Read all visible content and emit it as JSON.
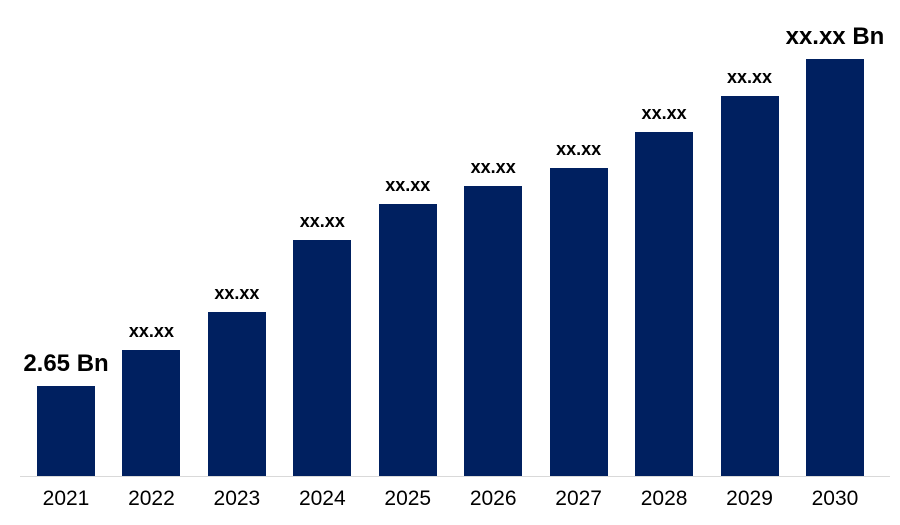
{
  "chart_data": {
    "type": "bar",
    "categories": [
      "2021",
      "2022",
      "2023",
      "2024",
      "2025",
      "2026",
      "2027",
      "2028",
      "2029",
      "2030"
    ],
    "values": [
      2.65,
      3.71,
      4.83,
      6.95,
      8.01,
      8.54,
      9.07,
      10.13,
      11.19,
      12.28
    ],
    "value_labels": [
      "2.65 Bn",
      "xx.xx",
      "xx.xx",
      "xx.xx",
      "xx.xx",
      "xx.xx",
      "xx.xx",
      "xx.xx",
      "xx.xx",
      "xx.xx Bn"
    ],
    "emphasized_labels": [
      true,
      false,
      false,
      false,
      false,
      false,
      false,
      false,
      false,
      true
    ],
    "unit": "Bn",
    "known_values": {
      "2021": "2.65 Bn"
    },
    "title": "",
    "xlabel": "",
    "ylabel": "",
    "ylim": [
      0,
      12.28
    ],
    "grid": "off",
    "legend": "none",
    "bar_color": "#002060",
    "axis_line_color": "#d9d9d9",
    "label_color": "#000000",
    "background_color": "#ffffff"
  }
}
